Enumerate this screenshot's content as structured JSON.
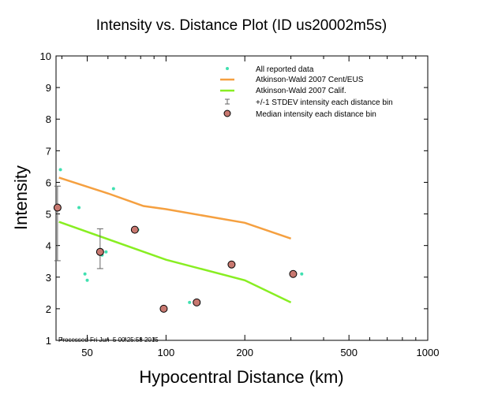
{
  "chart_data": {
    "type": "scatter",
    "title": "Intensity vs. Distance Plot (ID us20002m5s)",
    "xlabel": "Hypocentral Distance (km)",
    "ylabel": "Intensity",
    "x_scale": "log",
    "xlim": [
      38,
      1000
    ],
    "ylim": [
      1,
      10
    ],
    "x_ticks": [
      50,
      100,
      200,
      500,
      1000
    ],
    "x_tick_labels": [
      "50",
      "100",
      "200",
      "500",
      "1000"
    ],
    "y_ticks": [
      1,
      2,
      3,
      4,
      5,
      6,
      7,
      8,
      9,
      10
    ],
    "y_tick_labels": [
      "1",
      "2",
      "3",
      "4",
      "5",
      "6",
      "7",
      "8",
      "9",
      "10"
    ],
    "grid": false,
    "legend_position": "top-right",
    "legend": [
      "All reported data",
      "Atkinson-Wald 2007 Cent/EUS",
      "Atkinson-Wald 2007 Calif.",
      "+/-1 STDEV intensity each distance bin",
      "Median intensity each distance bin"
    ],
    "annotation": "Processed Fri Jun  5 00:25:58 2015",
    "colors": {
      "reported": "#40e0b0",
      "cent_eus": "#f5a040",
      "calif": "#88ee22",
      "median_fill": "#c87870",
      "stdev": "#666666"
    },
    "series": [
      {
        "name": "All reported data",
        "kind": "points",
        "points": [
          [
            39.5,
            6.4
          ],
          [
            46.5,
            5.2
          ],
          [
            49.0,
            3.1
          ],
          [
            50.0,
            2.9
          ],
          [
            57.0,
            3.7
          ],
          [
            59.0,
            3.8
          ],
          [
            63.0,
            5.8
          ],
          [
            78.0,
            4.5
          ],
          [
            123.0,
            2.2
          ],
          [
            330.0,
            3.1
          ]
        ]
      },
      {
        "name": "Atkinson-Wald 2007 Cent/EUS",
        "kind": "line",
        "points": [
          [
            39,
            6.15
          ],
          [
            60,
            5.65
          ],
          [
            82,
            5.25
          ],
          [
            100,
            5.15
          ],
          [
            200,
            4.72
          ],
          [
            300,
            4.22
          ]
        ]
      },
      {
        "name": "Atkinson-Wald 2007 Calif.",
        "kind": "line",
        "points": [
          [
            39,
            4.75
          ],
          [
            100,
            3.55
          ],
          [
            200,
            2.9
          ],
          [
            300,
            2.2
          ]
        ]
      },
      {
        "name": "+/-1 STDEV intensity each distance bin",
        "kind": "errorbars",
        "bars": [
          [
            38.5,
            3.52,
            5.88
          ],
          [
            56.0,
            3.27,
            4.53
          ]
        ]
      },
      {
        "name": "Median intensity each distance bin",
        "kind": "points",
        "points": [
          [
            38.5,
            5.2
          ],
          [
            56.0,
            3.8
          ],
          [
            76.0,
            4.5
          ],
          [
            98.0,
            2.0
          ],
          [
            131.0,
            2.2
          ],
          [
            178.0,
            3.4
          ],
          [
            306.0,
            3.1
          ]
        ]
      }
    ]
  }
}
